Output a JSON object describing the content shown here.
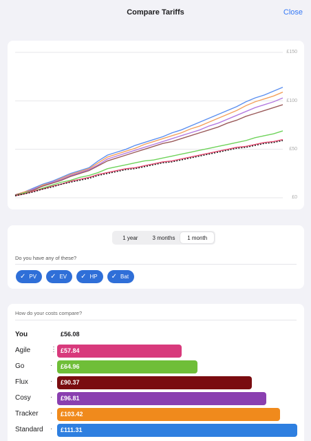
{
  "nav": {
    "title": "Compare Tariffs",
    "close_label": "Close"
  },
  "chart_data": {
    "type": "line",
    "yticks": [
      "£150",
      "£100",
      "£50",
      "£0"
    ],
    "ylim": [
      0,
      150
    ],
    "x": [
      1,
      2,
      3,
      4,
      5,
      6,
      7,
      8,
      9,
      10,
      11,
      12,
      13,
      14,
      15,
      16,
      17,
      18,
      19,
      20,
      21,
      22,
      23,
      24,
      25,
      26,
      27,
      28,
      29,
      30
    ],
    "series": [
      {
        "color": "#5b8ff0",
        "values": [
          3,
          6,
          10,
          14,
          17,
          21,
          25,
          28,
          31,
          38,
          44,
          47,
          50,
          54,
          57,
          60,
          63,
          67,
          70,
          74,
          78,
          82,
          86,
          90,
          94,
          99,
          103,
          106,
          110,
          114
        ]
      },
      {
        "color": "#f4a15d",
        "values": [
          3,
          6,
          9,
          13,
          16,
          20,
          24,
          27,
          30,
          36,
          42,
          45,
          48,
          51,
          55,
          58,
          61,
          64,
          67,
          71,
          74,
          78,
          82,
          86,
          90,
          95,
          99,
          102,
          105,
          109
        ]
      },
      {
        "color": "#b47be0",
        "values": [
          3,
          5,
          9,
          12,
          16,
          19,
          23,
          26,
          29,
          34,
          40,
          43,
          46,
          49,
          52,
          55,
          58,
          61,
          64,
          67,
          70,
          74,
          77,
          81,
          85,
          89,
          93,
          96,
          99,
          103
        ]
      },
      {
        "color": "#9a5a5a",
        "values": [
          3,
          5,
          8,
          12,
          15,
          18,
          22,
          25,
          28,
          33,
          38,
          41,
          44,
          47,
          50,
          53,
          56,
          58,
          61,
          64,
          67,
          70,
          73,
          77,
          80,
          84,
          87,
          90,
          93,
          96
        ]
      },
      {
        "color": "#6ed35a",
        "values": [
          2,
          5,
          7,
          10,
          13,
          16,
          18,
          21,
          23,
          26,
          30,
          32,
          34,
          36,
          38,
          39,
          41,
          43,
          45,
          47,
          49,
          51,
          53,
          55,
          57,
          59,
          62,
          64,
          66,
          69
        ]
      },
      {
        "color": "#e6486f",
        "values": [
          2,
          4,
          7,
          9,
          12,
          14,
          17,
          19,
          21,
          24,
          26,
          28,
          30,
          31,
          33,
          35,
          37,
          38,
          40,
          42,
          44,
          46,
          48,
          50,
          52,
          53,
          55,
          57,
          58,
          60
        ]
      },
      {
        "color": "#111111",
        "values": [
          2,
          4,
          6,
          9,
          11,
          14,
          16,
          18,
          20,
          23,
          25,
          27,
          29,
          30,
          32,
          34,
          36,
          37,
          39,
          41,
          43,
          45,
          47,
          49,
          51,
          52,
          54,
          56,
          57,
          59
        ]
      }
    ]
  },
  "range_tabs": [
    {
      "label": "1 year",
      "active": false
    },
    {
      "label": "3 months",
      "active": false
    },
    {
      "label": "1 month",
      "active": true
    }
  ],
  "filters": {
    "question": "Do you have any of these?",
    "chips": [
      "PV",
      "EV",
      "HP",
      "Bat"
    ],
    "check_icon": "checkmark-icon"
  },
  "compare": {
    "question": "How do your costs compare?",
    "you": {
      "label": "You",
      "value": "£56.08"
    },
    "max_value": 111.31,
    "tariffs": [
      {
        "name": "Agile",
        "value": "£57.84",
        "amount": 57.84,
        "color": "#d83a7c",
        "marker": "⋮"
      },
      {
        "name": "Go",
        "value": "£64.96",
        "amount": 64.96,
        "color": "#6fbe38",
        "marker": "·"
      },
      {
        "name": "Flux",
        "value": "£90.37",
        "amount": 90.37,
        "color": "#7a0c10",
        "marker": "·"
      },
      {
        "name": "Cosy",
        "value": "£96.81",
        "amount": 96.81,
        "color": "#8a3fb0",
        "marker": "·"
      },
      {
        "name": "Tracker",
        "value": "£103.42",
        "amount": 103.42,
        "color": "#f08a1c",
        "marker": "·"
      },
      {
        "name": "Standard",
        "value": "£111.31",
        "amount": 111.31,
        "color": "#2e7fe0",
        "marker": "·"
      }
    ]
  }
}
